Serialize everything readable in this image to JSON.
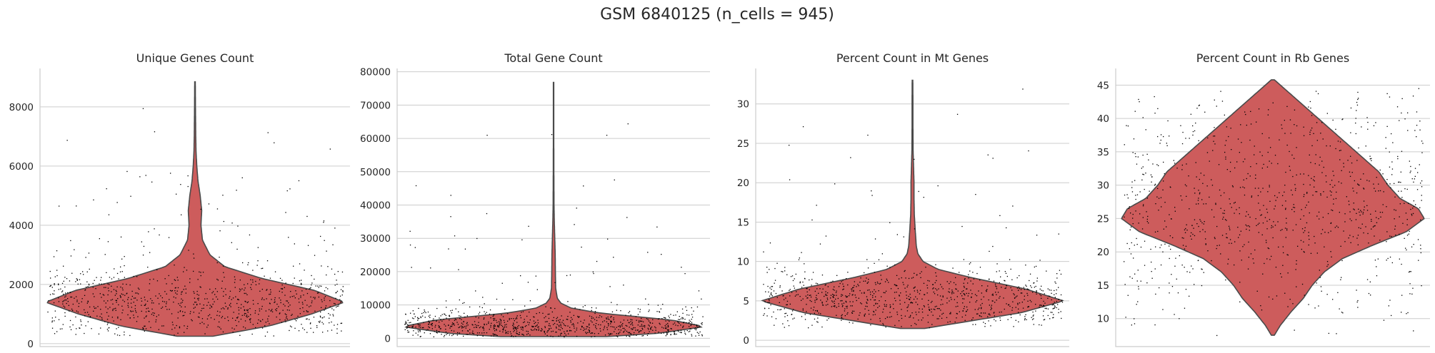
{
  "figure_title": "GSM 6840125 (n_cells = 945)",
  "colors": {
    "violin_fill": "#cd5c5c",
    "violin_edge": "#4a4a4a",
    "point": "#000000",
    "grid": "#cccccc"
  },
  "chart_data": [
    {
      "type": "violin",
      "title": "Unique Genes Count",
      "ylim": [
        -100,
        9300
      ],
      "yticks": [
        0,
        2000,
        4000,
        6000,
        8000
      ],
      "ytick_labels": [
        "0",
        "2000",
        "4000",
        "6000",
        "8000"
      ],
      "n_points": 945,
      "max": 8850,
      "min": 250,
      "typical_value": 1400,
      "density_profile": [
        [
          250,
          0.12
        ],
        [
          600,
          0.5
        ],
        [
          1000,
          0.78
        ],
        [
          1400,
          1.0
        ],
        [
          1800,
          0.8
        ],
        [
          2200,
          0.45
        ],
        [
          2600,
          0.2
        ],
        [
          3000,
          0.1
        ],
        [
          3500,
          0.05
        ],
        [
          4000,
          0.04
        ],
        [
          4500,
          0.045
        ],
        [
          5000,
          0.035
        ],
        [
          5500,
          0.02
        ],
        [
          6000,
          0.012
        ],
        [
          6500,
          0.007
        ],
        [
          7000,
          0.005
        ],
        [
          8000,
          0.003
        ],
        [
          8850,
          0.002
        ]
      ]
    },
    {
      "type": "violin",
      "title": "Total Gene Count",
      "ylim": [
        -2500,
        81000
      ],
      "yticks": [
        0,
        10000,
        20000,
        30000,
        40000,
        50000,
        60000,
        70000,
        80000
      ],
      "ytick_labels": [
        "0",
        "10000",
        "20000",
        "30000",
        "40000",
        "50000",
        "60000",
        "70000",
        "80000"
      ],
      "n_points": 945,
      "max": 76800,
      "min": 500,
      "typical_value": 3500,
      "density_profile": [
        [
          500,
          0.35
        ],
        [
          1500,
          0.7
        ],
        [
          3500,
          1.0
        ],
        [
          5500,
          0.78
        ],
        [
          7500,
          0.32
        ],
        [
          9000,
          0.12
        ],
        [
          10500,
          0.05
        ],
        [
          12000,
          0.025
        ],
        [
          15000,
          0.014
        ],
        [
          20000,
          0.012
        ],
        [
          25000,
          0.011
        ],
        [
          30000,
          0.008
        ],
        [
          35000,
          0.005
        ],
        [
          40000,
          0.003
        ],
        [
          50000,
          0.002
        ],
        [
          60000,
          0.0015
        ],
        [
          76800,
          0.0015
        ]
      ]
    },
    {
      "type": "violin",
      "title": "Percent Count in Mt Genes",
      "ylim": [
        -0.8,
        34.5
      ],
      "yticks": [
        0,
        5,
        10,
        15,
        20,
        25,
        30
      ],
      "ytick_labels": [
        "0",
        "5",
        "10",
        "15",
        "20",
        "25",
        "30"
      ],
      "n_points": 945,
      "max": 33,
      "min": 1.5,
      "typical_value": 5,
      "density_profile": [
        [
          1.5,
          0.08
        ],
        [
          2.5,
          0.4
        ],
        [
          3.5,
          0.72
        ],
        [
          5,
          1.0
        ],
        [
          6.5,
          0.75
        ],
        [
          8,
          0.38
        ],
        [
          9,
          0.17
        ],
        [
          10,
          0.07
        ],
        [
          11,
          0.035
        ],
        [
          12,
          0.025
        ],
        [
          14,
          0.018
        ],
        [
          16,
          0.012
        ],
        [
          18,
          0.01
        ],
        [
          20,
          0.01
        ],
        [
          22,
          0.007
        ],
        [
          24,
          0.004
        ],
        [
          27,
          0.003
        ],
        [
          30,
          0.003
        ],
        [
          33,
          0.002
        ]
      ]
    },
    {
      "type": "violin",
      "title": "Percent Count in Rb Genes",
      "ylim": [
        5.8,
        47.5
      ],
      "yticks": [
        10,
        15,
        20,
        25,
        30,
        35,
        40,
        45
      ],
      "ytick_labels": [
        "10",
        "15",
        "20",
        "25",
        "30",
        "35",
        "40",
        "45"
      ],
      "n_points": 945,
      "max": 45.8,
      "min": 7.5,
      "typical_value": 25.5,
      "density_profile": [
        [
          7.5,
          0.01
        ],
        [
          9,
          0.05
        ],
        [
          11,
          0.12
        ],
        [
          13,
          0.2
        ],
        [
          15,
          0.26
        ],
        [
          17,
          0.34
        ],
        [
          19,
          0.46
        ],
        [
          21,
          0.66
        ],
        [
          23,
          0.88
        ],
        [
          25,
          1.0
        ],
        [
          26.5,
          0.96
        ],
        [
          28,
          0.84
        ],
        [
          30,
          0.76
        ],
        [
          32,
          0.7
        ],
        [
          34,
          0.6
        ],
        [
          36,
          0.5
        ],
        [
          38,
          0.4
        ],
        [
          40,
          0.3
        ],
        [
          42,
          0.2
        ],
        [
          44,
          0.1
        ],
        [
          45.8,
          0.01
        ]
      ]
    }
  ]
}
